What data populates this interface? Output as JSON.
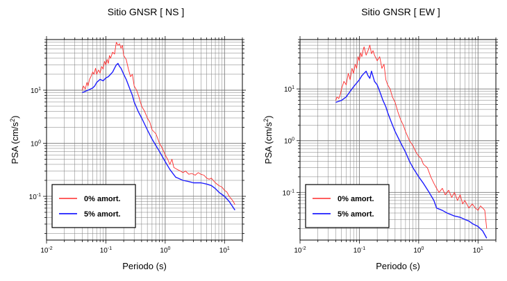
{
  "colors": {
    "undamped": "#ff2a2a",
    "damped": "#1c1cff",
    "frame": "#000000",
    "grid": "#7a7a7a"
  },
  "chart_data": [
    {
      "type": "line",
      "title": "Sitio GNSR [ NS ]",
      "xlabel": "Periodo (s)",
      "ylabel": "PSA (cm/s²)",
      "ylabel_base": "PSA (cm/s",
      "ylabel_sup": "2",
      "ylabel_close": ")",
      "xscale": "log",
      "yscale": "log",
      "xlim": [
        0.01,
        20
      ],
      "ylim": [
        0.015,
        90
      ],
      "xtick_labels": [
        {
          "base": "10",
          "exp": "-2"
        },
        {
          "base": "10",
          "exp": "-1"
        },
        {
          "base": "10",
          "exp": "0"
        },
        {
          "base": "10",
          "exp": "1"
        }
      ],
      "ytick_labels": [
        {
          "base": "10",
          "exp": "-1"
        },
        {
          "base": "10",
          "exp": "0"
        },
        {
          "base": "10",
          "exp": "1"
        }
      ],
      "grid": true,
      "legend_position": "bottom-left",
      "series": [
        {
          "name": "0% amort.",
          "x": [
            0.04,
            0.042,
            0.045,
            0.048,
            0.05,
            0.053,
            0.056,
            0.06,
            0.063,
            0.067,
            0.07,
            0.075,
            0.08,
            0.085,
            0.09,
            0.095,
            0.1,
            0.105,
            0.11,
            0.115,
            0.12,
            0.13,
            0.14,
            0.15,
            0.16,
            0.17,
            0.18,
            0.19,
            0.2,
            0.22,
            0.24,
            0.26,
            0.28,
            0.3,
            0.33,
            0.36,
            0.4,
            0.45,
            0.5,
            0.55,
            0.6,
            0.7,
            0.8,
            0.9,
            1.0,
            1.1,
            1.2,
            1.3,
            1.4,
            1.6,
            1.8,
            2.0,
            2.2,
            2.5,
            2.8,
            3.2,
            3.6,
            4.0,
            4.5,
            5.0,
            5.5,
            6.0,
            7.0,
            8.0,
            9.0,
            10,
            11,
            12,
            13,
            14,
            15
          ],
          "values": [
            10,
            12,
            10.5,
            14,
            12,
            16,
            18,
            22,
            20,
            26,
            20,
            24,
            21,
            28,
            25,
            35,
            30,
            38,
            32,
            45,
            40,
            52,
            48,
            80,
            70,
            75,
            62,
            70,
            45,
            38,
            25,
            18,
            20,
            12,
            10,
            7.5,
            5.0,
            4.0,
            3.0,
            2.5,
            1.8,
            1.5,
            1.0,
            0.8,
            0.6,
            0.5,
            0.4,
            0.5,
            0.35,
            0.32,
            0.3,
            0.28,
            0.3,
            0.26,
            0.27,
            0.25,
            0.28,
            0.26,
            0.25,
            0.22,
            0.21,
            0.22,
            0.18,
            0.16,
            0.15,
            0.13,
            0.12,
            0.1,
            0.09,
            0.08,
            0.07
          ]
        },
        {
          "name": "5% amort.",
          "x": [
            0.04,
            0.045,
            0.05,
            0.055,
            0.06,
            0.065,
            0.07,
            0.08,
            0.09,
            0.1,
            0.11,
            0.12,
            0.13,
            0.14,
            0.15,
            0.16,
            0.17,
            0.18,
            0.2,
            0.22,
            0.25,
            0.28,
            0.3,
            0.35,
            0.4,
            0.5,
            0.6,
            0.7,
            0.8,
            1.0,
            1.2,
            1.5,
            2.0,
            2.5,
            3.0,
            4.0,
            5.0,
            6.0,
            7.0,
            8.0,
            10,
            12,
            15
          ],
          "values": [
            9,
            9.5,
            10,
            10.5,
            11,
            12,
            14,
            16,
            15,
            17,
            18,
            20,
            22,
            26,
            30,
            32,
            28,
            26,
            20,
            16,
            11,
            8,
            6,
            4,
            3,
            1.8,
            1.2,
            0.9,
            0.7,
            0.45,
            0.32,
            0.23,
            0.2,
            0.19,
            0.18,
            0.18,
            0.17,
            0.16,
            0.14,
            0.12,
            0.1,
            0.08,
            0.055
          ]
        }
      ]
    },
    {
      "type": "line",
      "title": "Sitio GNSR [ EW ]",
      "xlabel": "Periodo (s)",
      "ylabel": "PSA (cm/s²)",
      "ylabel_base": "PSA (cm/s",
      "ylabel_sup": "2",
      "ylabel_close": ")",
      "xscale": "log",
      "yscale": "log",
      "xlim": [
        0.01,
        20
      ],
      "ylim": [
        0.012,
        90
      ],
      "xtick_labels": [
        {
          "base": "10",
          "exp": "-2"
        },
        {
          "base": "10",
          "exp": "-1"
        },
        {
          "base": "10",
          "exp": "0"
        },
        {
          "base": "10",
          "exp": "1"
        }
      ],
      "ytick_labels": [
        {
          "base": "10",
          "exp": "-1"
        },
        {
          "base": "10",
          "exp": "0"
        },
        {
          "base": "10",
          "exp": "1"
        }
      ],
      "grid": true,
      "legend_position": "bottom-left",
      "series": [
        {
          "name": "0% amort.",
          "x": [
            0.04,
            0.042,
            0.045,
            0.048,
            0.05,
            0.055,
            0.06,
            0.065,
            0.07,
            0.075,
            0.08,
            0.085,
            0.09,
            0.095,
            0.1,
            0.105,
            0.11,
            0.115,
            0.12,
            0.13,
            0.14,
            0.15,
            0.16,
            0.17,
            0.18,
            0.2,
            0.22,
            0.24,
            0.26,
            0.28,
            0.3,
            0.33,
            0.36,
            0.4,
            0.45,
            0.5,
            0.55,
            0.6,
            0.7,
            0.8,
            0.9,
            1.0,
            1.1,
            1.2,
            1.4,
            1.6,
            1.8,
            2.0,
            2.2,
            2.5,
            2.8,
            3.2,
            3.6,
            4.0,
            4.5,
            5.0,
            5.5,
            6.0,
            7.0,
            8.0,
            9.0,
            10,
            11,
            12,
            13,
            14
          ],
          "values": [
            6,
            7,
            6.5,
            8,
            10,
            14,
            12,
            20,
            15,
            25,
            20,
            30,
            25,
            42,
            35,
            50,
            42,
            55,
            65,
            45,
            55,
            70,
            48,
            55,
            45,
            35,
            42,
            25,
            30,
            15,
            12,
            10,
            7,
            5.5,
            3.5,
            2.5,
            2.0,
            1.5,
            1.0,
            0.8,
            0.6,
            0.5,
            0.45,
            0.35,
            0.3,
            0.2,
            0.15,
            0.12,
            0.1,
            0.12,
            0.09,
            0.11,
            0.08,
            0.1,
            0.07,
            0.09,
            0.06,
            0.07,
            0.05,
            0.06,
            0.05,
            0.045,
            0.055,
            0.05,
            0.045,
            0.02
          ]
        },
        {
          "name": "5% amort.",
          "x": [
            0.04,
            0.05,
            0.06,
            0.07,
            0.08,
            0.09,
            0.1,
            0.11,
            0.12,
            0.13,
            0.14,
            0.15,
            0.16,
            0.18,
            0.2,
            0.22,
            0.25,
            0.28,
            0.3,
            0.35,
            0.4,
            0.5,
            0.6,
            0.7,
            0.8,
            1.0,
            1.2,
            1.5,
            1.8,
            2.0,
            2.5,
            3.0,
            4.0,
            5.0,
            6.0,
            7.0,
            8.0,
            10,
            12,
            14
          ],
          "values": [
            5.5,
            6,
            7,
            9,
            11,
            13,
            15,
            18,
            20,
            22,
            18,
            16,
            22,
            14,
            12,
            9,
            6,
            4.5,
            3.5,
            2.2,
            1.5,
            0.9,
            0.6,
            0.4,
            0.3,
            0.2,
            0.15,
            0.1,
            0.07,
            0.05,
            0.045,
            0.04,
            0.035,
            0.033,
            0.03,
            0.028,
            0.025,
            0.022,
            0.018,
            0.013
          ]
        }
      ]
    }
  ]
}
